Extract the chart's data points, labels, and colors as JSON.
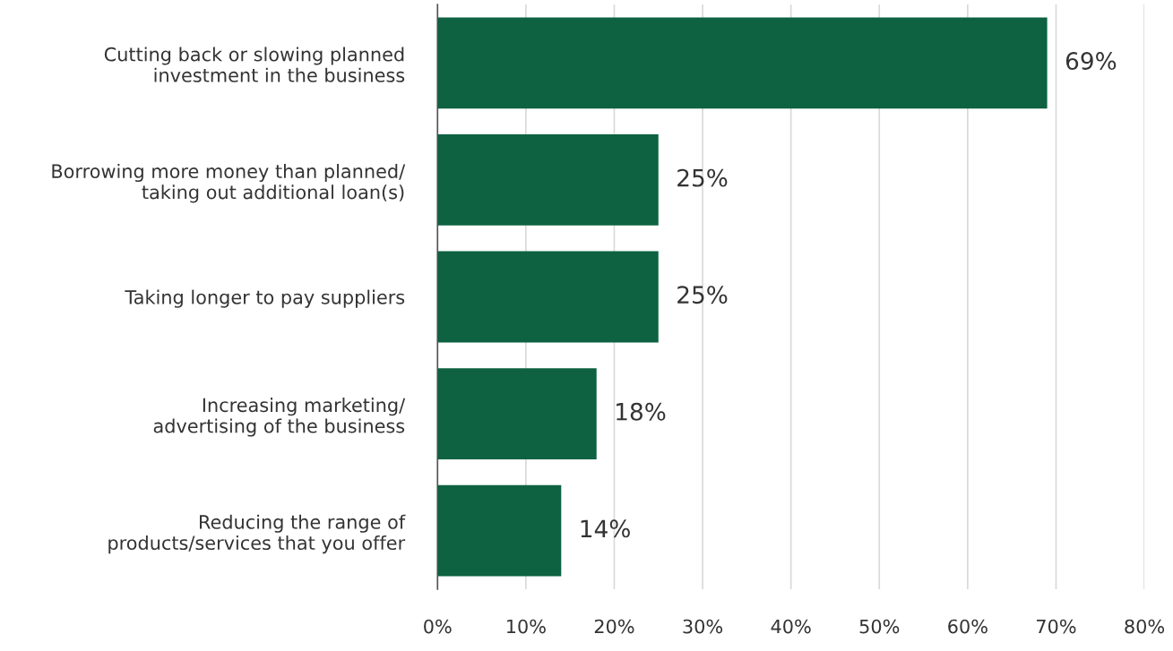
{
  "chart_data": {
    "type": "bar",
    "orientation": "horizontal",
    "categories": [
      "Cutting back or slowing planned\ninvestment in the business",
      "Borrowing more money than planned/\ntaking out additional loan(s)",
      "Taking longer to pay suppliers",
      "Increasing marketing/\nadvertising of the business",
      "Reducing the range of\nproducts/services that you offer"
    ],
    "values": [
      69,
      25,
      25,
      18,
      14
    ],
    "value_labels": [
      "69%",
      "25%",
      "25%",
      "18%",
      "14%"
    ],
    "color": "#0e6242",
    "xlim": [
      0,
      80
    ],
    "xticks": [
      {
        "value": 0,
        "label": "0%"
      },
      {
        "value": 10,
        "label": "10%"
      },
      {
        "value": 20,
        "label": "20%"
      },
      {
        "value": 30,
        "label": "30%"
      },
      {
        "value": 40,
        "label": "40%"
      },
      {
        "value": 50,
        "label": "50%"
      },
      {
        "value": 60,
        "label": "60%"
      },
      {
        "value": 70,
        "label": "70%"
      },
      {
        "value": 80,
        "label": "80%"
      }
    ],
    "grid": "x",
    "legend": false
  }
}
